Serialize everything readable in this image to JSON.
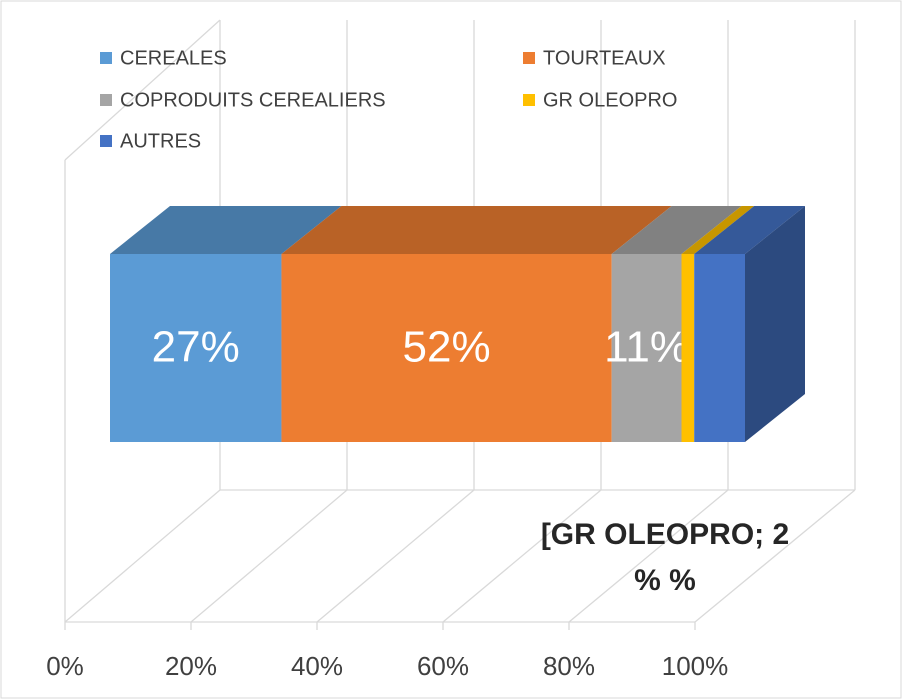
{
  "chart_data": {
    "type": "stacked_bar_3d",
    "orientation": "horizontal",
    "categories": [
      null
    ],
    "series": [
      {
        "name": "CEREALES",
        "color": "#5b9bd5",
        "values": [
          27
        ],
        "value_labels": [
          "27%"
        ]
      },
      {
        "name": "TOURTEAUX",
        "color": "#ed7d31",
        "values": [
          52
        ],
        "value_labels": [
          "52%"
        ]
      },
      {
        "name": "COPRODUITS CEREALIERS",
        "color": "#a5a5a5",
        "values": [
          11
        ],
        "value_labels": [
          "11%"
        ]
      },
      {
        "name": "GR OLEOPRO",
        "color": "#ffc000",
        "values": [
          2
        ],
        "value_labels": [
          "[GR OLEOPRO; 2 % %"
        ]
      },
      {
        "name": "AUTRES",
        "color": "#4472c4",
        "values": [
          8
        ]
      }
    ],
    "xlim": [
      0,
      100
    ],
    "xticks": [
      {
        "value": 0,
        "label": "0%"
      },
      {
        "value": 20,
        "label": "20%"
      },
      {
        "value": 40,
        "label": "40%"
      },
      {
        "value": 60,
        "label": "60%"
      },
      {
        "value": 80,
        "label": "80%"
      },
      {
        "value": 100,
        "label": "100%"
      }
    ],
    "grid": true,
    "legend": "top"
  }
}
